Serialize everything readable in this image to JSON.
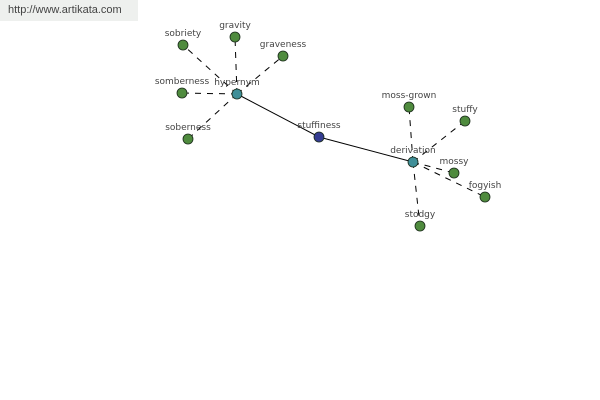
{
  "watermark": "http://www.artikata.com",
  "colors": {
    "leaf": "#4f8b3e",
    "hub": "#3f8f98",
    "center": "#343c91",
    "edge": "#000000"
  },
  "nodes": [
    {
      "id": "stuffiness",
      "label": "stuffiness",
      "kind": "center"
    },
    {
      "id": "hypernym",
      "label": "hypernym",
      "kind": "hub"
    },
    {
      "id": "derivation",
      "label": "derivation",
      "kind": "hub"
    },
    {
      "id": "sobriety",
      "label": "sobriety",
      "kind": "leaf"
    },
    {
      "id": "gravity",
      "label": "gravity",
      "kind": "leaf"
    },
    {
      "id": "graveness",
      "label": "graveness",
      "kind": "leaf"
    },
    {
      "id": "somberness",
      "label": "somberness",
      "kind": "leaf"
    },
    {
      "id": "soberness",
      "label": "soberness",
      "kind": "leaf"
    },
    {
      "id": "moss-grown",
      "label": "moss-grown",
      "kind": "leaf"
    },
    {
      "id": "stuffy",
      "label": "stuffy",
      "kind": "leaf"
    },
    {
      "id": "mossy",
      "label": "mossy",
      "kind": "leaf"
    },
    {
      "id": "fogyish",
      "label": "fogyish",
      "kind": "leaf"
    },
    {
      "id": "stodgy",
      "label": "stodgy",
      "kind": "leaf"
    }
  ],
  "edges": [
    {
      "from": "stuffiness",
      "to": "hypernym",
      "style": "solid"
    },
    {
      "from": "stuffiness",
      "to": "derivation",
      "style": "solid"
    },
    {
      "from": "hypernym",
      "to": "sobriety",
      "style": "dashed"
    },
    {
      "from": "hypernym",
      "to": "gravity",
      "style": "dashed"
    },
    {
      "from": "hypernym",
      "to": "graveness",
      "style": "dashed"
    },
    {
      "from": "hypernym",
      "to": "somberness",
      "style": "dashed"
    },
    {
      "from": "hypernym",
      "to": "soberness",
      "style": "dashed"
    },
    {
      "from": "derivation",
      "to": "moss-grown",
      "style": "dashed"
    },
    {
      "from": "derivation",
      "to": "stuffy",
      "style": "dashed"
    },
    {
      "from": "derivation",
      "to": "mossy",
      "style": "dashed"
    },
    {
      "from": "derivation",
      "to": "fogyish",
      "style": "dashed"
    },
    {
      "from": "derivation",
      "to": "stodgy",
      "style": "dashed"
    }
  ]
}
